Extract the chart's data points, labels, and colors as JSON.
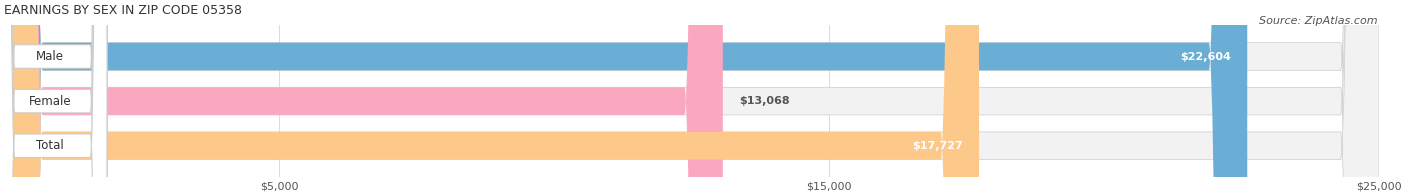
{
  "title": "EARNINGS BY SEX IN ZIP CODE 05358",
  "source": "Source: ZipAtlas.com",
  "categories": [
    "Male",
    "Female",
    "Total"
  ],
  "values": [
    22604,
    13068,
    17727
  ],
  "bar_colors": [
    "#6aaed6",
    "#f9a8c0",
    "#fdc98a"
  ],
  "bar_bg_color": "#f0f0f0",
  "label_bg_color": "#ffffff",
  "xmin": 0,
  "xmax": 25000,
  "xticks": [
    5000,
    15000,
    25000
  ],
  "xtick_labels": [
    "$5,000",
    "$15,000",
    "$25,000"
  ],
  "value_labels": [
    "$22,604",
    "$13,068",
    "$17,727"
  ],
  "bar_height": 0.62,
  "figsize": [
    14.06,
    1.96
  ],
  "dpi": 100,
  "title_fontsize": 9,
  "source_fontsize": 8,
  "label_fontsize": 8.5,
  "value_fontsize": 8,
  "tick_fontsize": 8
}
